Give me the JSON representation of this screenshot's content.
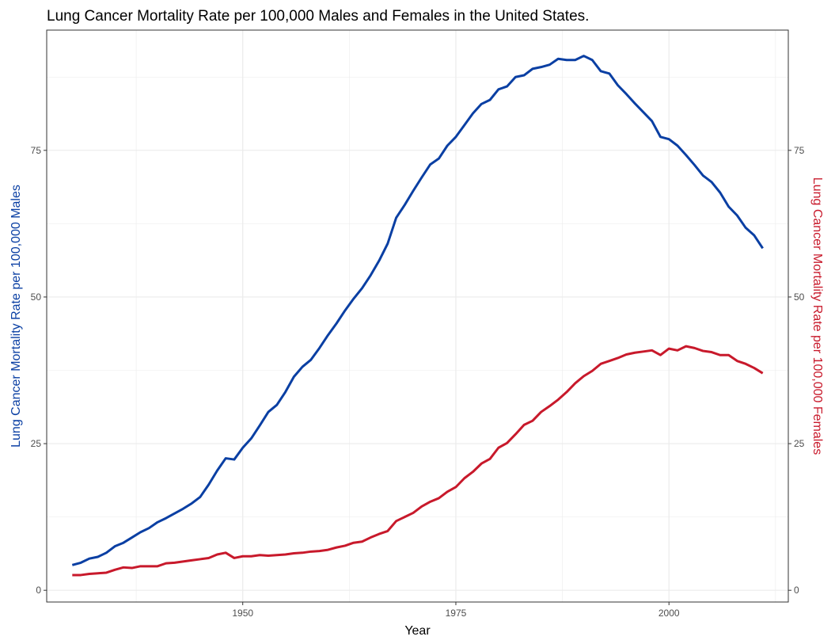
{
  "chart_data": {
    "type": "line",
    "title": "Lung Cancer Mortality Rate per 100,000 Males and Females in the United States.",
    "xlabel": "Year",
    "ylabel_left": "Lung Cancer Mortality Rate per 100,000 Males",
    "ylabel_right": "Lung Cancer Mortality Rate per 100,000 Females",
    "xlim": [
      1927,
      2014
    ],
    "ylim": [
      -2,
      95.5
    ],
    "x_ticks": [
      1950,
      1975,
      2000
    ],
    "y_ticks": [
      0,
      25,
      50,
      75
    ],
    "grid": true,
    "colors": {
      "males": "#0a3fa3",
      "females": "#c8192b"
    },
    "x": [
      1930,
      1931,
      1932,
      1933,
      1934,
      1935,
      1936,
      1937,
      1938,
      1939,
      1940,
      1941,
      1942,
      1943,
      1944,
      1945,
      1946,
      1947,
      1948,
      1949,
      1950,
      1951,
      1952,
      1953,
      1954,
      1955,
      1956,
      1957,
      1958,
      1959,
      1960,
      1961,
      1962,
      1963,
      1964,
      1965,
      1966,
      1967,
      1968,
      1969,
      1970,
      1971,
      1972,
      1973,
      1974,
      1975,
      1976,
      1977,
      1978,
      1979,
      1980,
      1981,
      1982,
      1983,
      1984,
      1985,
      1986,
      1987,
      1988,
      1989,
      1990,
      1991,
      1992,
      1993,
      1994,
      1995,
      1996,
      1997,
      1998,
      1999,
      2000,
      2001,
      2002,
      2003,
      2004,
      2005,
      2006,
      2007,
      2008,
      2009,
      2010,
      2011
    ],
    "series": [
      {
        "key": "males",
        "values": [
          4.3,
          4.7,
          5.4,
          5.7,
          6.4,
          7.5,
          8.1,
          9.0,
          9.9,
          10.6,
          11.6,
          12.3,
          13.1,
          13.9,
          14.8,
          15.9,
          18.0,
          20.4,
          22.5,
          22.3,
          24.3,
          25.9,
          28.1,
          30.4,
          31.6,
          33.8,
          36.4,
          38.1,
          39.3,
          41.3,
          43.5,
          45.5,
          47.7,
          49.7,
          51.5,
          53.7,
          56.2,
          59.1,
          63.5,
          65.7,
          68.1,
          70.4,
          72.6,
          73.6,
          75.8,
          77.3,
          79.3,
          81.3,
          82.9,
          83.6,
          85.4,
          85.9,
          87.5,
          87.8,
          88.9,
          89.2,
          89.6,
          90.6,
          90.4,
          90.4,
          91.1,
          90.4,
          88.5,
          88.1,
          86.1,
          84.6,
          83.0,
          81.5,
          80.0,
          77.3,
          76.9,
          75.8,
          74.2,
          72.5,
          70.7,
          69.6,
          67.8,
          65.4,
          63.9,
          61.8,
          60.5,
          58.3
        ]
      },
      {
        "key": "females",
        "values": [
          2.6,
          2.6,
          2.8,
          2.9,
          3.0,
          3.5,
          3.9,
          3.8,
          4.1,
          4.1,
          4.1,
          4.6,
          4.7,
          4.9,
          5.1,
          5.3,
          5.5,
          6.1,
          6.4,
          5.5,
          5.8,
          5.8,
          6.0,
          5.9,
          6.0,
          6.1,
          6.3,
          6.4,
          6.6,
          6.7,
          6.9,
          7.3,
          7.6,
          8.1,
          8.3,
          9.0,
          9.6,
          10.1,
          11.8,
          12.5,
          13.2,
          14.3,
          15.1,
          15.7,
          16.8,
          17.6,
          19.1,
          20.2,
          21.6,
          22.4,
          24.3,
          25.1,
          26.6,
          28.2,
          28.9,
          30.4,
          31.4,
          32.5,
          33.8,
          35.3,
          36.5,
          37.4,
          38.6,
          39.1,
          39.6,
          40.2,
          40.5,
          40.7,
          40.9,
          40.1,
          41.2,
          40.9,
          41.6,
          41.3,
          40.8,
          40.6,
          40.1,
          40.1,
          39.1,
          38.6,
          37.9,
          37.0
        ]
      }
    ]
  }
}
